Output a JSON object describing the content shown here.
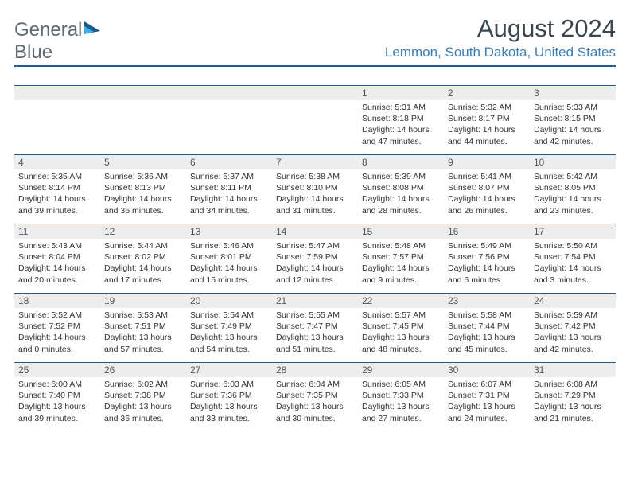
{
  "logo": {
    "text1": "General",
    "text2": "Blue"
  },
  "title": "August 2024",
  "location": "Lemmon, South Dakota, United States",
  "colors": {
    "header_bg": "#3bb2e6",
    "border": "#1e5a8f",
    "daynum_bg": "#ededed",
    "location": "#3b7fb6",
    "title": "#3a4750"
  },
  "weekdays": [
    "Sunday",
    "Monday",
    "Tuesday",
    "Wednesday",
    "Thursday",
    "Friday",
    "Saturday"
  ],
  "weeks": [
    [
      null,
      null,
      null,
      null,
      {
        "n": "1",
        "sr": "5:31 AM",
        "ss": "8:18 PM",
        "dl": "14 hours and 47 minutes."
      },
      {
        "n": "2",
        "sr": "5:32 AM",
        "ss": "8:17 PM",
        "dl": "14 hours and 44 minutes."
      },
      {
        "n": "3",
        "sr": "5:33 AM",
        "ss": "8:15 PM",
        "dl": "14 hours and 42 minutes."
      }
    ],
    [
      {
        "n": "4",
        "sr": "5:35 AM",
        "ss": "8:14 PM",
        "dl": "14 hours and 39 minutes."
      },
      {
        "n": "5",
        "sr": "5:36 AM",
        "ss": "8:13 PM",
        "dl": "14 hours and 36 minutes."
      },
      {
        "n": "6",
        "sr": "5:37 AM",
        "ss": "8:11 PM",
        "dl": "14 hours and 34 minutes."
      },
      {
        "n": "7",
        "sr": "5:38 AM",
        "ss": "8:10 PM",
        "dl": "14 hours and 31 minutes."
      },
      {
        "n": "8",
        "sr": "5:39 AM",
        "ss": "8:08 PM",
        "dl": "14 hours and 28 minutes."
      },
      {
        "n": "9",
        "sr": "5:41 AM",
        "ss": "8:07 PM",
        "dl": "14 hours and 26 minutes."
      },
      {
        "n": "10",
        "sr": "5:42 AM",
        "ss": "8:05 PM",
        "dl": "14 hours and 23 minutes."
      }
    ],
    [
      {
        "n": "11",
        "sr": "5:43 AM",
        "ss": "8:04 PM",
        "dl": "14 hours and 20 minutes."
      },
      {
        "n": "12",
        "sr": "5:44 AM",
        "ss": "8:02 PM",
        "dl": "14 hours and 17 minutes."
      },
      {
        "n": "13",
        "sr": "5:46 AM",
        "ss": "8:01 PM",
        "dl": "14 hours and 15 minutes."
      },
      {
        "n": "14",
        "sr": "5:47 AM",
        "ss": "7:59 PM",
        "dl": "14 hours and 12 minutes."
      },
      {
        "n": "15",
        "sr": "5:48 AM",
        "ss": "7:57 PM",
        "dl": "14 hours and 9 minutes."
      },
      {
        "n": "16",
        "sr": "5:49 AM",
        "ss": "7:56 PM",
        "dl": "14 hours and 6 minutes."
      },
      {
        "n": "17",
        "sr": "5:50 AM",
        "ss": "7:54 PM",
        "dl": "14 hours and 3 minutes."
      }
    ],
    [
      {
        "n": "18",
        "sr": "5:52 AM",
        "ss": "7:52 PM",
        "dl": "14 hours and 0 minutes."
      },
      {
        "n": "19",
        "sr": "5:53 AM",
        "ss": "7:51 PM",
        "dl": "13 hours and 57 minutes."
      },
      {
        "n": "20",
        "sr": "5:54 AM",
        "ss": "7:49 PM",
        "dl": "13 hours and 54 minutes."
      },
      {
        "n": "21",
        "sr": "5:55 AM",
        "ss": "7:47 PM",
        "dl": "13 hours and 51 minutes."
      },
      {
        "n": "22",
        "sr": "5:57 AM",
        "ss": "7:45 PM",
        "dl": "13 hours and 48 minutes."
      },
      {
        "n": "23",
        "sr": "5:58 AM",
        "ss": "7:44 PM",
        "dl": "13 hours and 45 minutes."
      },
      {
        "n": "24",
        "sr": "5:59 AM",
        "ss": "7:42 PM",
        "dl": "13 hours and 42 minutes."
      }
    ],
    [
      {
        "n": "25",
        "sr": "6:00 AM",
        "ss": "7:40 PM",
        "dl": "13 hours and 39 minutes."
      },
      {
        "n": "26",
        "sr": "6:02 AM",
        "ss": "7:38 PM",
        "dl": "13 hours and 36 minutes."
      },
      {
        "n": "27",
        "sr": "6:03 AM",
        "ss": "7:36 PM",
        "dl": "13 hours and 33 minutes."
      },
      {
        "n": "28",
        "sr": "6:04 AM",
        "ss": "7:35 PM",
        "dl": "13 hours and 30 minutes."
      },
      {
        "n": "29",
        "sr": "6:05 AM",
        "ss": "7:33 PM",
        "dl": "13 hours and 27 minutes."
      },
      {
        "n": "30",
        "sr": "6:07 AM",
        "ss": "7:31 PM",
        "dl": "13 hours and 24 minutes."
      },
      {
        "n": "31",
        "sr": "6:08 AM",
        "ss": "7:29 PM",
        "dl": "13 hours and 21 minutes."
      }
    ]
  ],
  "labels": {
    "sunrise": "Sunrise: ",
    "sunset": "Sunset: ",
    "daylight": "Daylight: "
  }
}
